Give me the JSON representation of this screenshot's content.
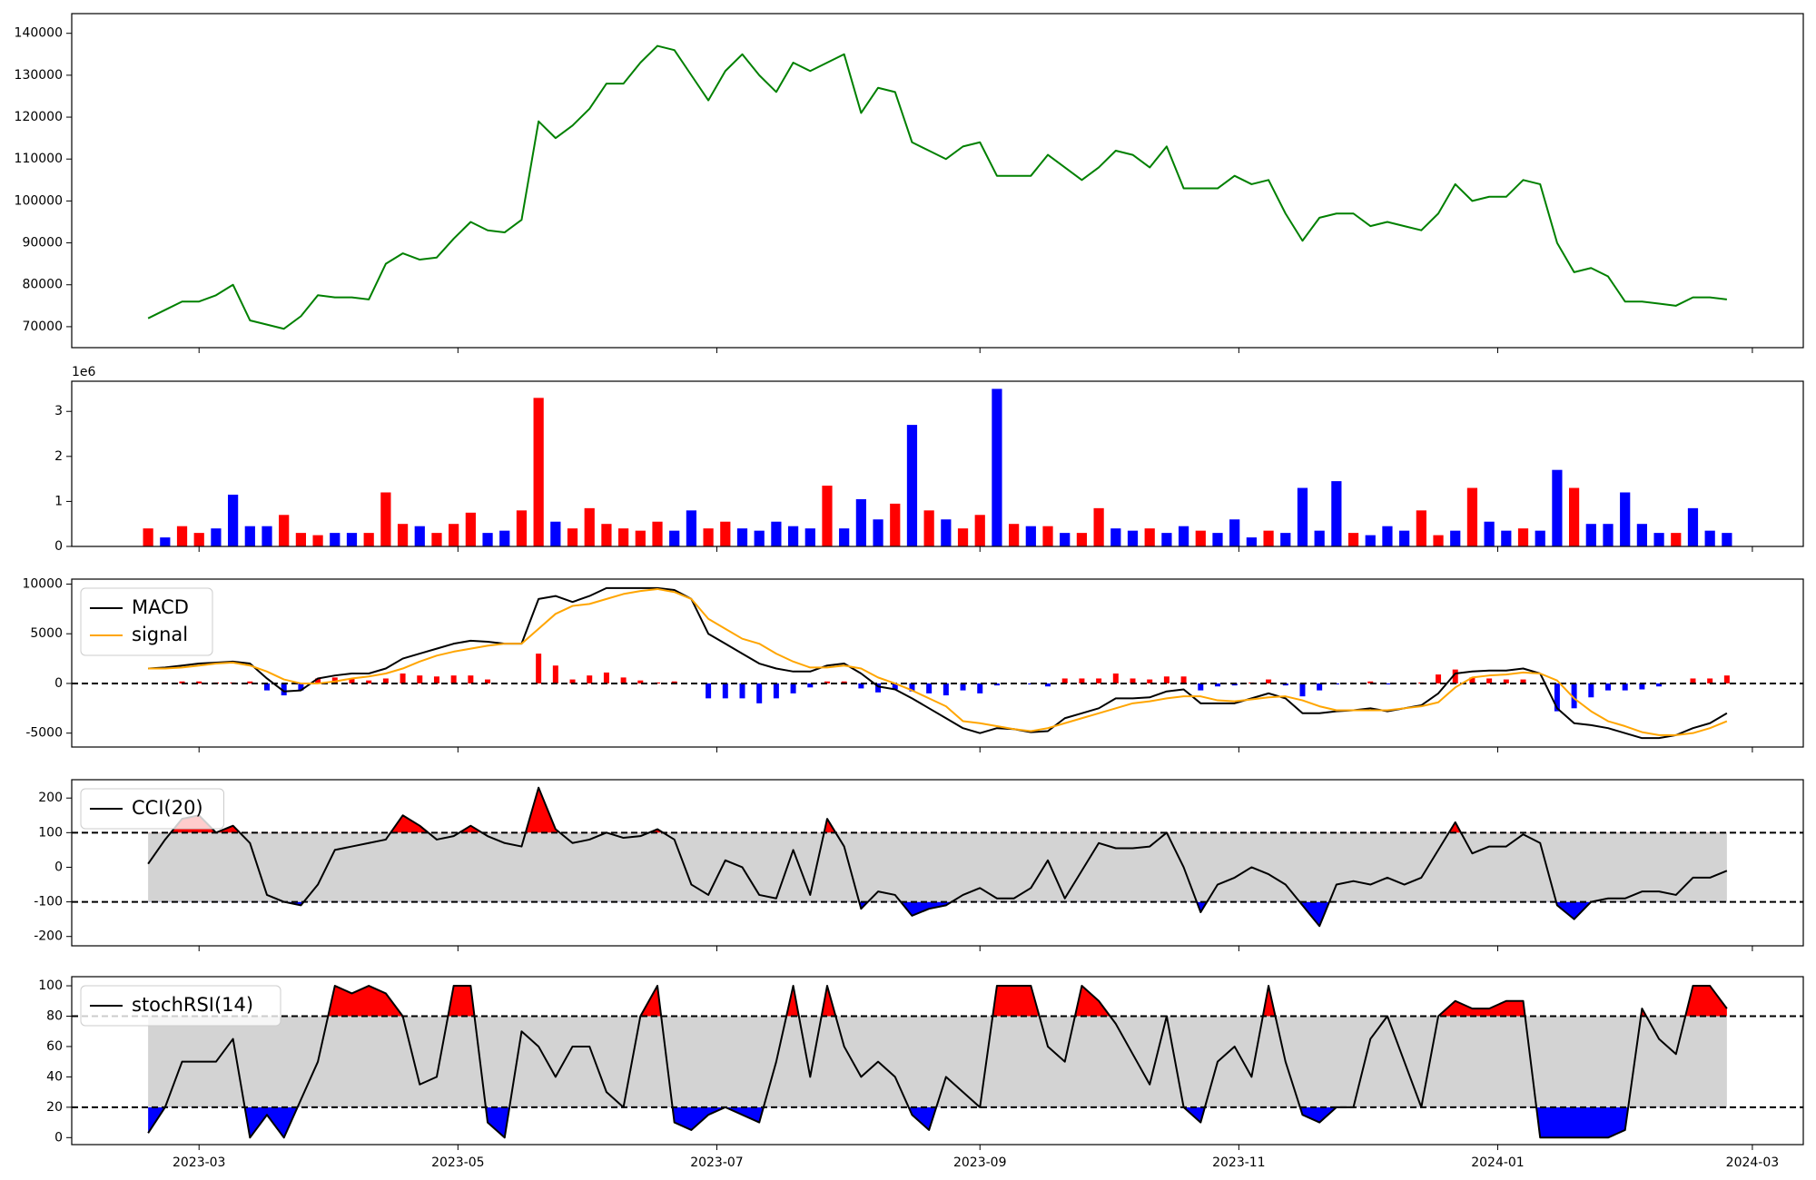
{
  "chart_data": [
    {
      "type": "line",
      "ylim": [
        65000,
        144700
      ],
      "yticks": [
        70000,
        80000,
        90000,
        100000,
        110000,
        120000,
        130000,
        140000
      ],
      "series": [
        {
          "color": "green",
          "values": [
            72000,
            74000,
            76000,
            76000,
            77500,
            80000,
            71500,
            70500,
            69500,
            72500,
            77500,
            77000,
            77000,
            76500,
            85000,
            87500,
            86000,
            86500,
            91000,
            95000,
            93000,
            92500,
            95500,
            119000,
            115000,
            118000,
            122000,
            128000,
            128000,
            133000,
            137000,
            136000,
            130000,
            124000,
            131000,
            135000,
            130000,
            126000,
            133000,
            131000,
            133000,
            135000,
            121000,
            127000,
            126000,
            114000,
            112000,
            110000,
            113000,
            114000,
            106000,
            106000,
            106000,
            111000,
            108000,
            105000,
            108000,
            112000,
            111000,
            108000,
            113000,
            103000,
            103000,
            103000,
            106000,
            104000,
            105000,
            97000,
            90500,
            96000,
            97000,
            97000,
            94000,
            95000,
            94000,
            93000,
            97000,
            104000,
            100000,
            101000,
            101000,
            105000,
            104000,
            90000,
            83000,
            84000,
            82000,
            76000,
            76000,
            75500,
            75000,
            77000,
            77000,
            76500
          ]
        }
      ]
    },
    {
      "type": "bar",
      "offset_label": "1e6",
      "ylim": [
        0,
        3.67
      ],
      "yticks": [
        0,
        1,
        2,
        3
      ],
      "values": [
        0.4,
        0.2,
        0.45,
        0.3,
        0.4,
        1.15,
        0.45,
        0.45,
        0.7,
        0.3,
        0.25,
        0.3,
        0.3,
        0.3,
        1.2,
        0.5,
        0.45,
        0.3,
        0.5,
        0.75,
        0.3,
        0.35,
        0.8,
        3.3,
        0.55,
        0.4,
        0.85,
        0.5,
        0.4,
        0.35,
        0.55,
        0.35,
        0.8,
        0.4,
        0.55,
        0.4,
        0.35,
        0.55,
        0.45,
        0.4,
        1.35,
        0.4,
        1.05,
        0.6,
        0.95,
        2.7,
        0.8,
        0.6,
        0.4,
        0.7,
        3.5,
        0.5,
        0.45,
        0.45,
        0.3,
        0.3,
        0.85,
        0.4,
        0.35,
        0.4,
        0.3,
        0.45,
        0.35,
        0.3,
        0.6,
        0.2,
        0.35,
        0.3,
        1.3,
        0.35,
        1.45,
        0.3,
        0.25,
        0.45,
        0.35,
        0.8,
        0.25,
        0.35,
        1.3,
        0.55,
        0.35,
        0.4,
        0.35,
        1.7,
        1.3,
        0.5,
        0.5,
        1.2,
        0.5,
        0.3,
        0.3,
        0.85,
        0.35,
        0.3
      ],
      "colors": [
        "red",
        "blue",
        "red",
        "red",
        "blue",
        "blue",
        "blue",
        "blue",
        "red",
        "red",
        "red",
        "blue",
        "blue",
        "red",
        "red",
        "red",
        "blue",
        "red",
        "red",
        "red",
        "blue",
        "blue",
        "red",
        "red",
        "blue",
        "red",
        "red",
        "red",
        "red",
        "red",
        "red",
        "blue",
        "blue",
        "red",
        "red",
        "blue",
        "blue",
        "blue",
        "blue",
        "blue",
        "red",
        "blue",
        "blue",
        "blue",
        "red",
        "blue",
        "red",
        "blue",
        "red",
        "red",
        "blue",
        "red",
        "blue",
        "red",
        "blue",
        "red",
        "red",
        "blue",
        "blue",
        "red",
        "blue",
        "blue",
        "red",
        "blue",
        "blue",
        "blue",
        "red",
        "blue",
        "blue",
        "blue",
        "blue",
        "red",
        "blue",
        "blue",
        "blue",
        "red",
        "red",
        "blue",
        "red",
        "blue",
        "blue",
        "red",
        "blue",
        "blue",
        "red",
        "blue",
        "blue",
        "blue",
        "blue",
        "blue",
        "red",
        "blue",
        "blue",
        "blue"
      ]
    },
    {
      "type": "line",
      "ylim": [
        -6400,
        10500
      ],
      "yticks": [
        -5000,
        0,
        5000,
        10000
      ],
      "reference_line": 0,
      "legend": "upper left",
      "series": [
        {
          "name": "MACD",
          "color": "black",
          "values": [
            1500,
            1600,
            1800,
            2000,
            2100,
            2200,
            2000,
            500,
            -800,
            -700,
            500,
            800,
            1000,
            1000,
            1500,
            2500,
            3000,
            3500,
            4000,
            4300,
            4200,
            4000,
            4000,
            8500,
            8800,
            8200,
            8800,
            9600,
            9600,
            9600,
            9600,
            9400,
            8500,
            5000,
            4000,
            3000,
            2000,
            1500,
            1200,
            1200,
            1800,
            2000,
            1000,
            -300,
            -600,
            -1500,
            -2500,
            -3500,
            -4500,
            -5000,
            -4500,
            -4600,
            -4900,
            -4800,
            -3500,
            -3000,
            -2500,
            -1500,
            -1500,
            -1400,
            -800,
            -600,
            -2000,
            -2000,
            -2000,
            -1500,
            -1000,
            -1500,
            -3000,
            -3000,
            -2800,
            -2700,
            -2500,
            -2800,
            -2500,
            -2200,
            -1000,
            1000,
            1200,
            1300,
            1300,
            1500,
            1000,
            -2500,
            -4000,
            -4200,
            -4500,
            -5000,
            -5500,
            -5500,
            -5200,
            -4500,
            -4000,
            -3000
          ]
        },
        {
          "name": "signal",
          "color": "orange",
          "values": [
            1500,
            1500,
            1600,
            1800,
            2000,
            2100,
            1800,
            1200,
            400,
            0,
            0,
            200,
            500,
            700,
            1000,
            1500,
            2200,
            2800,
            3200,
            3500,
            3800,
            4000,
            4000,
            5500,
            7000,
            7800,
            8000,
            8500,
            9000,
            9300,
            9500,
            9200,
            8500,
            6500,
            5500,
            4500,
            4000,
            3000,
            2200,
            1600,
            1600,
            1800,
            1500,
            600,
            0,
            -700,
            -1500,
            -2300,
            -3800,
            -4000,
            -4300,
            -4600,
            -4800,
            -4500,
            -4000,
            -3500,
            -3000,
            -2500,
            -2000,
            -1800,
            -1500,
            -1300,
            -1300,
            -1700,
            -1800,
            -1600,
            -1400,
            -1300,
            -1700,
            -2300,
            -2700,
            -2700,
            -2700,
            -2700,
            -2500,
            -2300,
            -1900,
            -400,
            600,
            800,
            900,
            1100,
            1000,
            300,
            -1500,
            -2800,
            -3800,
            -4300,
            -4900,
            -5200,
            -5200,
            -5000,
            -4500,
            -3800
          ]
        }
      ],
      "histogram": {
        "positive_color": "red",
        "negative_color": "blue",
        "values": [
          0,
          100,
          200,
          200,
          100,
          100,
          200,
          -700,
          -1200,
          -700,
          500,
          600,
          500,
          300,
          500,
          1000,
          800,
          700,
          800,
          800,
          400,
          0,
          0,
          3000,
          1800,
          400,
          800,
          1100,
          600,
          300,
          100,
          200,
          0,
          -1500,
          -1500,
          -1500,
          -2000,
          -1500,
          -1000,
          -400,
          200,
          200,
          -500,
          -900,
          -600,
          -800,
          -1000,
          -1200,
          -700,
          -1000,
          -200,
          0,
          -100,
          -300,
          500,
          500,
          500,
          1000,
          500,
          400,
          700,
          700,
          -700,
          -300,
          -200,
          100,
          400,
          -200,
          -1300,
          -700,
          -100,
          0,
          200,
          -100,
          0,
          100,
          900,
          1400,
          600,
          500,
          400,
          400,
          0,
          -2800,
          -2500,
          -1400,
          -700,
          -700,
          -600,
          -300,
          0,
          500,
          500,
          800
        ]
      }
    },
    {
      "type": "line",
      "ylim": [
        -227,
        253
      ],
      "yticks": [
        -200,
        -100,
        0,
        100,
        200
      ],
      "thresholds": [
        -100,
        100
      ],
      "band_color": "lightgray",
      "above_color": "red",
      "below_color": "blue",
      "legend": "upper left",
      "series": [
        {
          "name": "CCI(20)",
          "color": "black",
          "values": [
            10,
            80,
            140,
            150,
            100,
            120,
            70,
            -80,
            -100,
            -110,
            -50,
            50,
            60,
            70,
            80,
            150,
            120,
            80,
            90,
            120,
            90,
            70,
            60,
            230,
            110,
            70,
            80,
            100,
            85,
            90,
            110,
            80,
            -50,
            -80,
            20,
            0,
            -80,
            -90,
            50,
            -80,
            140,
            60,
            -120,
            -70,
            -80,
            -140,
            -120,
            -110,
            -80,
            -60,
            -90,
            -90,
            -60,
            20,
            -90,
            -10,
            70,
            55,
            55,
            60,
            100,
            0,
            -130,
            -50,
            -30,
            0,
            -20,
            -50,
            -110,
            -170,
            -50,
            -40,
            -50,
            -30,
            -50,
            -30,
            50,
            130,
            40,
            60,
            60,
            95,
            70,
            -110,
            -150,
            -100,
            -90,
            -90,
            -70,
            -70,
            -80,
            -30,
            -30,
            -10
          ]
        }
      ]
    },
    {
      "type": "line",
      "ylim": [
        -4.6,
        106
      ],
      "yticks": [
        0,
        20,
        40,
        60,
        80,
        100
      ],
      "thresholds": [
        20,
        80
      ],
      "band_color": "lightgray",
      "above_color": "red",
      "below_color": "blue",
      "legend": "upper left",
      "xlim": [
        19387,
        19795
      ],
      "xticks": [
        {
          "value": 19417,
          "label": "2023-03"
        },
        {
          "value": 19478,
          "label": "2023-05"
        },
        {
          "value": 19539,
          "label": "2023-07"
        },
        {
          "value": 19601,
          "label": "2023-09"
        },
        {
          "value": 19662,
          "label": "2023-11"
        },
        {
          "value": 19723,
          "label": "2024-01"
        },
        {
          "value": 19783,
          "label": "2024-03"
        }
      ],
      "x": [
        19405,
        19409,
        19413,
        19417,
        19421,
        19425,
        19429,
        19433,
        19437,
        19441,
        19445,
        19449,
        19453,
        19457,
        19461,
        19465,
        19469,
        19473,
        19477,
        19481,
        19485,
        19489,
        19493,
        19497,
        19501,
        19505,
        19509,
        19513,
        19517,
        19521,
        19525,
        19529,
        19533,
        19537,
        19541,
        19545,
        19549,
        19553,
        19557,
        19561,
        19565,
        19569,
        19573,
        19577,
        19581,
        19585,
        19589,
        19593,
        19597,
        19601,
        19605,
        19609,
        19613,
        19617,
        19621,
        19625,
        19629,
        19633,
        19637,
        19641,
        19645,
        19649,
        19653,
        19657,
        19661,
        19665,
        19669,
        19673,
        19677,
        19681,
        19685,
        19689,
        19693,
        19697,
        19701,
        19705,
        19709,
        19713,
        19717,
        19721,
        19725,
        19729,
        19733,
        19737,
        19741,
        19745,
        19749,
        19753,
        19757,
        19761,
        19765,
        19769,
        19773,
        19777
      ],
      "series": [
        {
          "name": "stochRSI(14)",
          "color": "black",
          "values": [
            3,
            20,
            50,
            50,
            50,
            65,
            0,
            15,
            0,
            25,
            50,
            100,
            95,
            100,
            95,
            80,
            35,
            40,
            100,
            100,
            10,
            0,
            70,
            60,
            40,
            60,
            60,
            30,
            20,
            80,
            100,
            10,
            5,
            15,
            20,
            15,
            10,
            50,
            100,
            40,
            100,
            60,
            40,
            50,
            40,
            15,
            5,
            40,
            30,
            20,
            100,
            100,
            100,
            60,
            50,
            100,
            90,
            75,
            55,
            35,
            80,
            20,
            10,
            50,
            60,
            40,
            100,
            50,
            15,
            10,
            20,
            20,
            65,
            80,
            50,
            20,
            80,
            90,
            85,
            85,
            90,
            90,
            0,
            0,
            0,
            0,
            0,
            5,
            85,
            65,
            55,
            100,
            100,
            85
          ]
        }
      ]
    }
  ]
}
